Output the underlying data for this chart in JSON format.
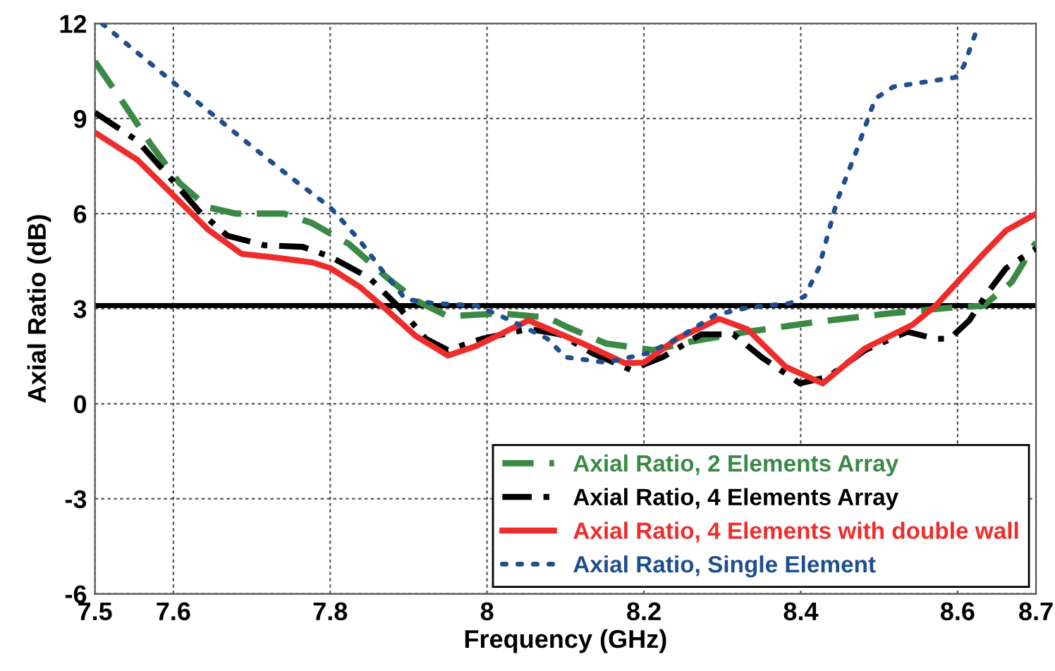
{
  "chart_data": {
    "type": "line",
    "xlabel": "Frequency (GHz)",
    "ylabel": "Axial Ratio (dB)",
    "xlim": [
      7.5,
      8.7
    ],
    "xticks": [
      7.5,
      7.6,
      7.8,
      8,
      8.2,
      8.4,
      8.6,
      8.7
    ],
    "ylim": [
      -6,
      12
    ],
    "yticks": [
      -6,
      -3,
      0,
      3,
      6,
      9,
      12
    ],
    "grid": true,
    "legend": "bottom right",
    "marker": "none",
    "ref_lines": [
      {
        "axis": "y",
        "value": 3.1,
        "color": "#000000",
        "line_style": "solid"
      }
    ],
    "series": [
      {
        "name": "Axial Ratio, 2 Elements Array",
        "color": "#3a8a45",
        "line_style": "dashed",
        "x": [
          7.5,
          7.536,
          7.572,
          7.608,
          7.644,
          7.68,
          7.741,
          7.777,
          7.824,
          7.873,
          7.909,
          7.95,
          8.017,
          8.077,
          8.104,
          8.152,
          8.212,
          8.26,
          8.332,
          8.423,
          8.513,
          8.59,
          8.633,
          8.669,
          8.7
        ],
        "values": [
          10.8,
          9.5,
          8.16,
          6.96,
          6.2,
          6.0,
          6.0,
          5.7,
          5.04,
          3.97,
          3.26,
          2.76,
          2.85,
          2.72,
          2.4,
          1.9,
          1.69,
          1.96,
          2.27,
          2.59,
          2.85,
          3.03,
          3.09,
          3.84,
          5.1
        ]
      },
      {
        "name": "Axial Ratio, 4 Elements Array",
        "color": "#000000",
        "line_style": "dashdot",
        "x": [
          7.5,
          7.554,
          7.597,
          7.633,
          7.669,
          7.716,
          7.765,
          7.8,
          7.85,
          7.886,
          7.922,
          7.95,
          7.994,
          8.053,
          8.093,
          8.134,
          8.183,
          8.224,
          8.273,
          8.314,
          8.35,
          8.399,
          8.435,
          8.482,
          8.536,
          8.572,
          8.59,
          8.615,
          8.639,
          8.662,
          8.7
        ],
        "values": [
          9.19,
          8.3,
          7.1,
          6.07,
          5.3,
          5.0,
          4.95,
          4.64,
          3.97,
          3.09,
          2.05,
          1.69,
          2.05,
          2.36,
          2.19,
          1.6,
          1.07,
          1.47,
          2.19,
          2.19,
          1.47,
          0.64,
          0.85,
          1.69,
          2.27,
          2.05,
          2.05,
          2.63,
          3.53,
          4.28,
          4.9
        ]
      },
      {
        "name": "Axial Ratio, 4 Elements with double wall",
        "color": "#ee2c2c",
        "line_style": "solid",
        "x": [
          7.5,
          7.554,
          7.597,
          7.644,
          7.687,
          7.734,
          7.777,
          7.8,
          7.837,
          7.873,
          7.909,
          7.95,
          7.987,
          8.053,
          8.122,
          8.176,
          8.2,
          8.242,
          8.296,
          8.332,
          8.381,
          8.428,
          8.482,
          8.543,
          8.572,
          8.633,
          8.662,
          8.7
        ],
        "values": [
          8.56,
          7.7,
          6.65,
          5.5,
          4.73,
          4.6,
          4.46,
          4.28,
          3.7,
          2.94,
          2.14,
          1.52,
          1.83,
          2.63,
          1.9,
          1.28,
          1.3,
          2.05,
          2.68,
          2.35,
          1.16,
          0.64,
          1.75,
          2.5,
          3.09,
          4.73,
          5.47,
          5.99
        ]
      },
      {
        "name": "Axial Ratio, Single Element",
        "color": "#1f4e8c",
        "line_style": "dotted",
        "x": [
          7.509,
          7.597,
          7.698,
          7.752,
          7.8,
          7.837,
          7.868,
          7.896,
          7.932,
          7.987,
          8.03,
          8.077,
          8.1,
          8.152,
          8.206,
          8.242,
          8.291,
          8.332,
          8.386,
          8.405,
          8.423,
          8.446,
          8.471,
          8.495,
          8.518,
          8.597,
          8.608,
          8.623,
          8.626
        ],
        "values": [
          12.0,
          10.2,
          8.16,
          7.1,
          6.2,
          5.17,
          4.15,
          3.3,
          3.17,
          3.09,
          2.63,
          2.05,
          1.47,
          1.3,
          1.6,
          2.05,
          2.8,
          3.03,
          3.17,
          3.39,
          4.28,
          6.38,
          7.98,
          9.63,
          10.0,
          10.3,
          10.66,
          11.7,
          12.0
        ]
      }
    ]
  }
}
